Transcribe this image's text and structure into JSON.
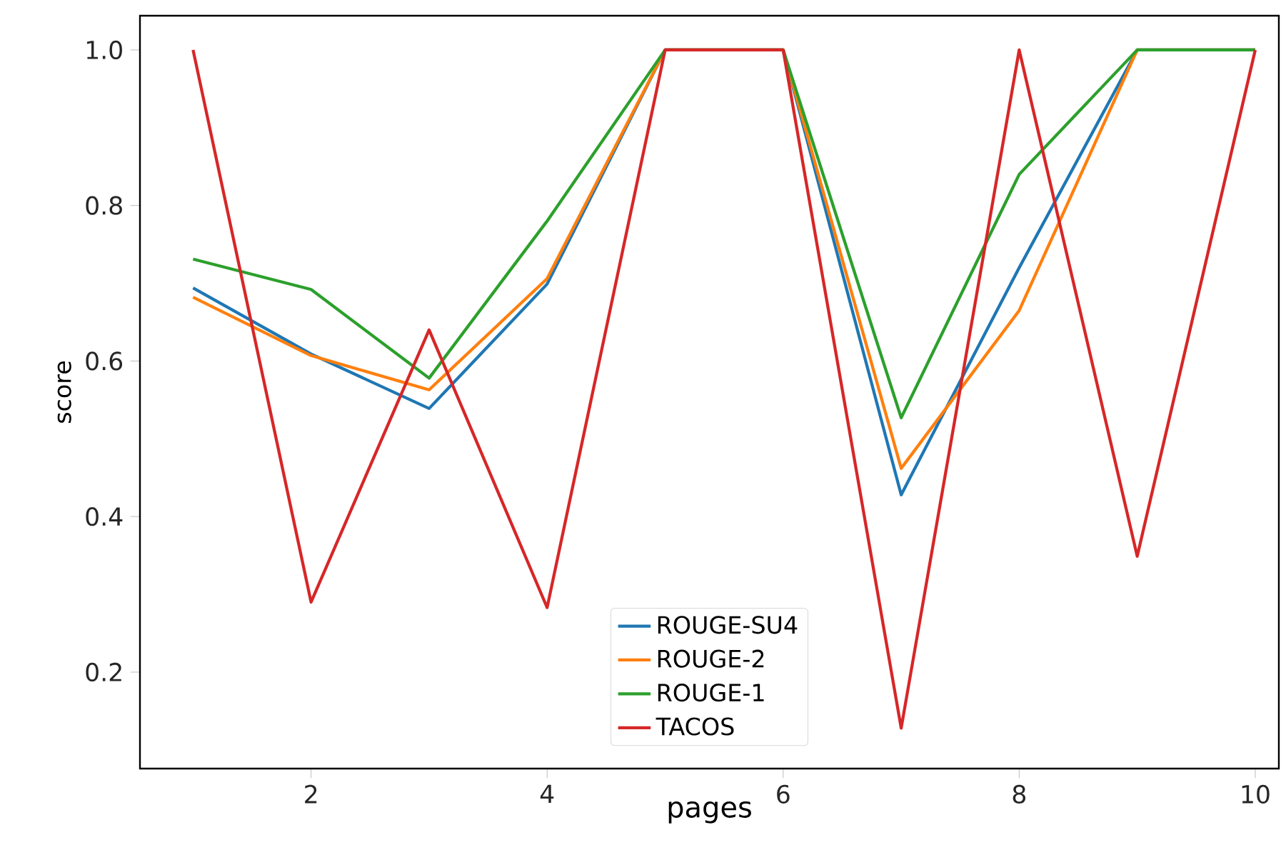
{
  "chart_data": {
    "type": "line",
    "xlabel": "pages",
    "ylabel": "score",
    "x": [
      1,
      2,
      3,
      4,
      5,
      6,
      7,
      8,
      9,
      10
    ],
    "series": [
      {
        "name": "ROUGE-SU4",
        "color": "#1f77b4",
        "values": [
          0.694,
          0.609,
          0.539,
          0.699,
          1.0,
          1.0,
          0.428,
          0.72,
          1.0,
          1.0
        ]
      },
      {
        "name": "ROUGE-2",
        "color": "#ff7f0e",
        "values": [
          0.682,
          0.607,
          0.563,
          0.706,
          1.0,
          1.0,
          0.462,
          0.665,
          1.0,
          1.0
        ]
      },
      {
        "name": "ROUGE-1",
        "color": "#2ca02c",
        "values": [
          0.731,
          0.692,
          0.578,
          0.78,
          1.0,
          1.0,
          0.527,
          0.84,
          1.0,
          1.0
        ]
      },
      {
        "name": "TACOS",
        "color": "#d62728",
        "values": [
          1.0,
          0.29,
          0.64,
          0.283,
          1.0,
          1.0,
          0.128,
          1.0,
          0.349,
          1.0
        ]
      }
    ],
    "xlim": [
      0.55,
      10.2
    ],
    "ylim": [
      0.076,
      1.044
    ],
    "xticks": [
      2,
      4,
      6,
      8,
      10
    ],
    "yticks": [
      0.2,
      0.4,
      0.6,
      0.8,
      {
        "value": 1,
        "label": "1.0"
      }
    ],
    "legend": "bottom",
    "grid": false
  }
}
